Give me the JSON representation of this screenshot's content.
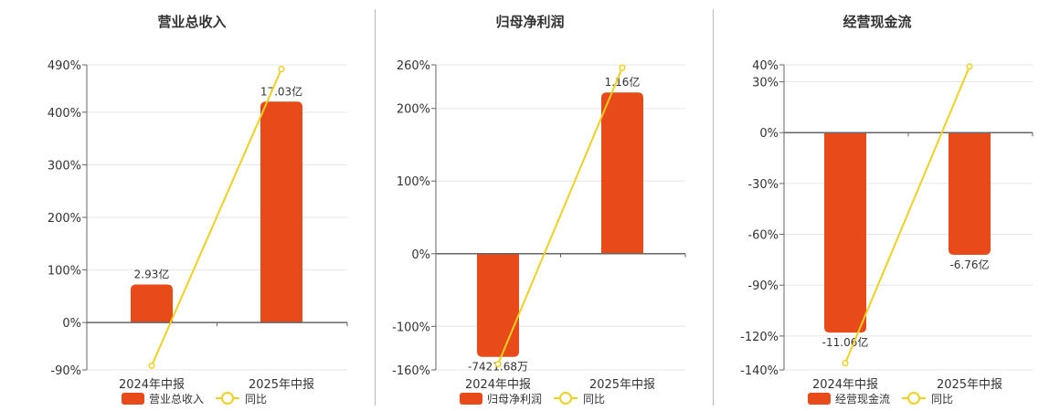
{
  "chart_data": [
    {
      "type": "bar",
      "title": "营业总收入",
      "categories": [
        "2024年中报",
        "2025年中报"
      ],
      "series": [
        {
          "name": "营业总收入",
          "kind": "bar",
          "values": [
            2.93,
            17.03
          ],
          "labels": [
            "2.93亿",
            "17.03亿"
          ],
          "color": "#e84a1a"
        },
        {
          "name": "同比",
          "kind": "line",
          "values": [
            -82,
            482
          ],
          "color": "#f0d020"
        }
      ],
      "y_axis": {
        "ticks": [
          490,
          400,
          300,
          200,
          100,
          0,
          -90
        ],
        "tick_labels": [
          "490%",
          "400%",
          "300%",
          "200%",
          "100%",
          "0%",
          "-90%"
        ],
        "ylim": [
          -90,
          490
        ]
      },
      "grid": true,
      "legend": "bottom"
    },
    {
      "type": "bar",
      "title": "归母净利润",
      "categories": [
        "2024年中报",
        "2025年中报"
      ],
      "series": [
        {
          "name": "归母净利润",
          "kind": "bar",
          "values": [
            -0.742168,
            1.16
          ],
          "labels": [
            "-7421.68万",
            "1.16亿"
          ],
          "color": "#e84a1a"
        },
        {
          "name": "同比",
          "kind": "line",
          "values": [
            -152,
            256
          ],
          "color": "#f0d020"
        }
      ],
      "y_axis": {
        "ticks": [
          260,
          200,
          100,
          0,
          -100,
          -160
        ],
        "tick_labels": [
          "260%",
          "200%",
          "100%",
          "0%",
          "-100%",
          "-160%"
        ],
        "ylim": [
          -160,
          260
        ]
      },
      "grid": true,
      "legend": "bottom"
    },
    {
      "type": "bar",
      "title": "经营现金流",
      "categories": [
        "2024年中报",
        "2025年中报"
      ],
      "series": [
        {
          "name": "经营现金流",
          "kind": "bar",
          "values": [
            -11.06,
            -6.76
          ],
          "labels": [
            "-11.06亿",
            "-6.76亿"
          ],
          "color": "#e84a1a"
        },
        {
          "name": "同比",
          "kind": "line",
          "values": [
            -136,
            39
          ],
          "color": "#f0d020"
        }
      ],
      "y_axis": {
        "ticks": [
          40,
          30,
          0,
          -30,
          -60,
          -90,
          -120,
          -140
        ],
        "tick_labels": [
          "40%",
          "30%",
          "0%",
          "-30%",
          "-60%",
          "-90%",
          "-120%",
          "-140%"
        ],
        "ylim": [
          -140,
          40
        ]
      },
      "grid": true,
      "legend": "bottom"
    }
  ],
  "colors": {
    "bar": "#e84a1a",
    "line": "#f0d020",
    "grid": "#e6e6e6",
    "axis": "#666666",
    "text": "#333333"
  }
}
